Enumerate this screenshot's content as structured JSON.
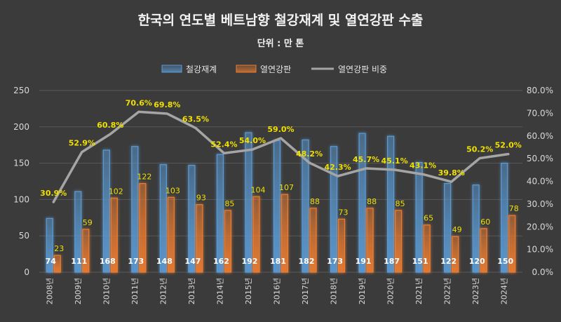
{
  "chart_data": {
    "type": "bar",
    "title": "한국의 연도별 베트남향 철강재계 및 열연강판 수출",
    "subtitle": "단위 : 만 톤",
    "categories": [
      "2008년",
      "2009년",
      "2010년",
      "2011년",
      "2012년",
      "2013년",
      "2014년",
      "2015년",
      "2016년",
      "2017년",
      "2018년",
      "2019년",
      "2020년",
      "2021년",
      "2022년",
      "2023년",
      "2024년"
    ],
    "series": [
      {
        "name": "철강재계",
        "kind": "bar",
        "axis": "left",
        "color": "#5b9bd5",
        "values": [
          74,
          111,
          168,
          173,
          148,
          147,
          162,
          192,
          181,
          182,
          173,
          191,
          187,
          151,
          122,
          120,
          150
        ],
        "labels": [
          "74",
          "111",
          "168",
          "173",
          "148",
          "147",
          "162",
          "192",
          "181",
          "182",
          "173",
          "191",
          "187",
          "151",
          "122",
          "120",
          "150"
        ]
      },
      {
        "name": "열연강판",
        "kind": "bar",
        "axis": "left",
        "color": "#ed7d31",
        "values": [
          23,
          59,
          102,
          122,
          103,
          93,
          85,
          104,
          107,
          88,
          73,
          88,
          85,
          65,
          49,
          60,
          78
        ],
        "labels": [
          "23",
          "59",
          "102",
          "122",
          "103",
          "93",
          "85",
          "104",
          "107",
          "88",
          "73",
          "88",
          "85",
          "65",
          "49",
          "60",
          "78"
        ]
      },
      {
        "name": "열연강판 비중",
        "kind": "line",
        "axis": "right",
        "color": "#a5a5a5",
        "values": [
          30.9,
          52.9,
          60.8,
          70.6,
          69.8,
          63.5,
          52.4,
          54.0,
          59.0,
          48.2,
          42.3,
          45.7,
          45.1,
          43.1,
          39.8,
          50.2,
          52.0
        ],
        "labels": [
          "30.9%",
          "52.9%",
          "60.8%",
          "70.6%",
          "69.8%",
          "63.5%",
          "52.4%",
          "54.0%",
          "59.0%",
          "48.2%",
          "42.3%",
          "45.7%",
          "45.1%",
          "43.1%",
          "39.8%",
          "50.2%",
          "52.0%"
        ]
      }
    ],
    "y_left": {
      "min": 0,
      "max": 250,
      "ticks": [
        "0",
        "50",
        "100",
        "150",
        "200",
        "250"
      ]
    },
    "y_right": {
      "min": 0,
      "max": 80,
      "ticks": [
        "0.0%",
        "10.0%",
        "20.0%",
        "30.0%",
        "40.0%",
        "50.0%",
        "60.0%",
        "70.0%",
        "80.0%"
      ]
    },
    "grid": true,
    "legend_position": "top"
  }
}
